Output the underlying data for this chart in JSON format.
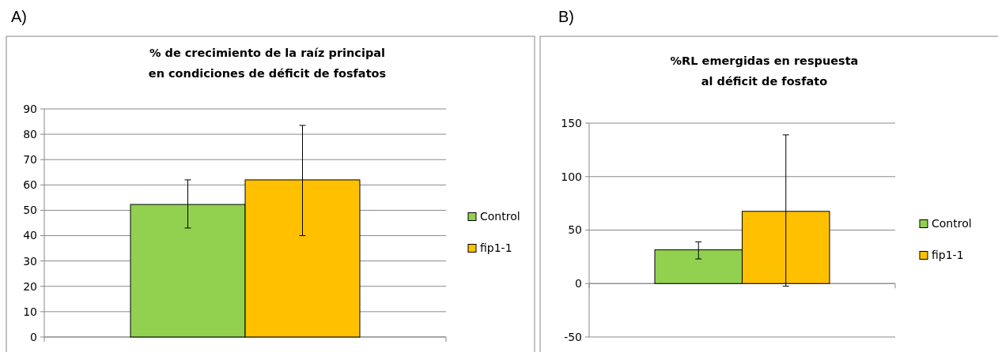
{
  "chart_data": [
    {
      "type": "bar",
      "title": "% de crecimiento de la raíz principal\nen condiciones de déficit de fosfatos",
      "annotations": [
        "A)"
      ],
      "categories": [
        null
      ],
      "series": [
        {
          "name": "Control",
          "color": "#92d050",
          "values": [
            52.3
          ],
          "errors": [
            [
              43,
              62
            ]
          ]
        },
        {
          "name": "fip1-1",
          "color": "#ffc000",
          "values": [
            62
          ],
          "errors": [
            [
              40,
              83.5
            ]
          ]
        }
      ],
      "ylim": [
        0,
        90
      ],
      "yticks": [
        0,
        10,
        20,
        30,
        40,
        50,
        60,
        70,
        80,
        90
      ],
      "grid": "y",
      "legend": "right"
    },
    {
      "type": "bar",
      "title": "%RL emergidas en respuesta\nal déficit de fosfato",
      "annotations": [
        "B)"
      ],
      "categories": [
        null
      ],
      "series": [
        {
          "name": "Control",
          "color": "#92d050",
          "values": [
            31.5
          ],
          "errors": [
            [
              23,
              39
            ]
          ]
        },
        {
          "name": "fip1-1",
          "color": "#ffc000",
          "values": [
            67.5
          ],
          "errors": [
            [
              -2.5,
              139
            ]
          ]
        }
      ],
      "ylim": [
        -50,
        150
      ],
      "yticks": [
        -50,
        0,
        50,
        100,
        150
      ],
      "grid": "y",
      "legend": "right"
    }
  ]
}
